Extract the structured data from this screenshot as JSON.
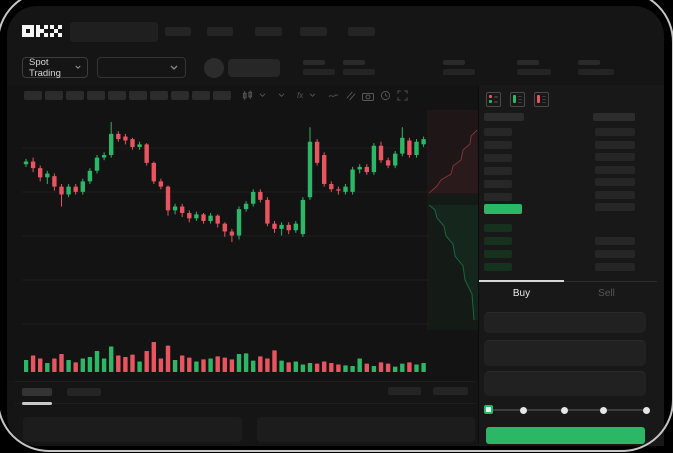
{
  "brand": {
    "name": "OKX"
  },
  "market_selector": {
    "label": "Spot Trading"
  },
  "chart_toolbar": {
    "icons": [
      "candles-icon",
      "chevron-down-icon",
      "chevron-down-icon",
      "fx-icon",
      "chevron-down-icon",
      "line-style-icon",
      "compare-icon",
      "camera-icon",
      "clock-icon",
      "fullscreen-icon"
    ]
  },
  "orderbook": {
    "view_icons": [
      "book-combined-icon",
      "book-buys-icon",
      "book-sells-icon"
    ],
    "rows": {
      "left_plain_count": 6,
      "right_top_count": 7,
      "left_green_count": 4,
      "right_bottom_count": 3
    }
  },
  "trade_panel": {
    "tabs": [
      {
        "label": "Buy",
        "active": true
      },
      {
        "label": "Sell",
        "active": false
      }
    ],
    "slider": {
      "positions_pct": [
        0,
        22,
        48,
        73,
        100
      ],
      "active_index": 0
    }
  },
  "colors": {
    "green": "#2bb766",
    "red": "#e8545f",
    "green_row": "#17311f",
    "app_bg": "#151515"
  },
  "chart_data": {
    "type": "candlestick",
    "value_range": [
      0,
      100
    ],
    "series_note": "candles as [open, close, high, low] on normalized 0-100 scale; volumes 0-100",
    "candles": [
      [
        65,
        67,
        69,
        63
      ],
      [
        67,
        62,
        70,
        59
      ],
      [
        62,
        55,
        64,
        52
      ],
      [
        55,
        58,
        60,
        50
      ],
      [
        56,
        48,
        58,
        45
      ],
      [
        48,
        42,
        50,
        33
      ],
      [
        42,
        48,
        50,
        40
      ],
      [
        48,
        44,
        50,
        42
      ],
      [
        44,
        52,
        54,
        42
      ],
      [
        52,
        60,
        62,
        50
      ],
      [
        60,
        70,
        72,
        58
      ],
      [
        70,
        72,
        74,
        68
      ],
      [
        72,
        88,
        97,
        70
      ],
      [
        88,
        84,
        90,
        82
      ],
      [
        86,
        83,
        88,
        80
      ],
      [
        84,
        78,
        85,
        76
      ],
      [
        78,
        80,
        82,
        76
      ],
      [
        80,
        66,
        81,
        64
      ],
      [
        66,
        52,
        67,
        50
      ],
      [
        52,
        48,
        54,
        46
      ],
      [
        48,
        30,
        49,
        26
      ],
      [
        30,
        33,
        35,
        27
      ],
      [
        33,
        28,
        35,
        25
      ],
      [
        28,
        24,
        30,
        21
      ],
      [
        24,
        27,
        29,
        22
      ],
      [
        27,
        22,
        28,
        20
      ],
      [
        22,
        26,
        28,
        20
      ],
      [
        26,
        20,
        27,
        17
      ],
      [
        20,
        14,
        21,
        10
      ],
      [
        14,
        11,
        16,
        6
      ],
      [
        11,
        31,
        33,
        8
      ],
      [
        31,
        35,
        37,
        29
      ],
      [
        35,
        44,
        46,
        33
      ],
      [
        44,
        38,
        46,
        36
      ],
      [
        38,
        20,
        40,
        18
      ],
      [
        20,
        16,
        22,
        13
      ],
      [
        16,
        19,
        21,
        11
      ],
      [
        19,
        15,
        21,
        12
      ],
      [
        15,
        20,
        22,
        13
      ],
      [
        12,
        38,
        40,
        10
      ],
      [
        40,
        82,
        93,
        38
      ],
      [
        82,
        66,
        84,
        64
      ],
      [
        72,
        50,
        74,
        48
      ],
      [
        50,
        46,
        52,
        44
      ],
      [
        46,
        45,
        48,
        42
      ],
      [
        44,
        48,
        50,
        42
      ],
      [
        44,
        61,
        63,
        42
      ],
      [
        61,
        63,
        65,
        58
      ],
      [
        63,
        59,
        65,
        57
      ],
      [
        59,
        79,
        81,
        57
      ],
      [
        79,
        68,
        82,
        66
      ],
      [
        68,
        64,
        70,
        62
      ],
      [
        64,
        73,
        75,
        62
      ],
      [
        73,
        85,
        93,
        71
      ],
      [
        83,
        72,
        85,
        70
      ],
      [
        72,
        82,
        84,
        70
      ],
      [
        80,
        84,
        86,
        78
      ]
    ],
    "volumes": [
      40,
      55,
      45,
      30,
      45,
      60,
      40,
      32,
      45,
      50,
      70,
      45,
      85,
      55,
      50,
      58,
      35,
      70,
      100,
      45,
      88,
      40,
      55,
      48,
      35,
      42,
      45,
      52,
      48,
      42,
      60,
      62,
      38,
      52,
      45,
      72,
      38,
      32,
      35,
      25,
      30,
      28,
      35,
      30,
      25,
      22,
      20,
      45,
      28,
      20,
      32,
      28,
      18,
      28,
      32,
      25,
      30
    ]
  }
}
